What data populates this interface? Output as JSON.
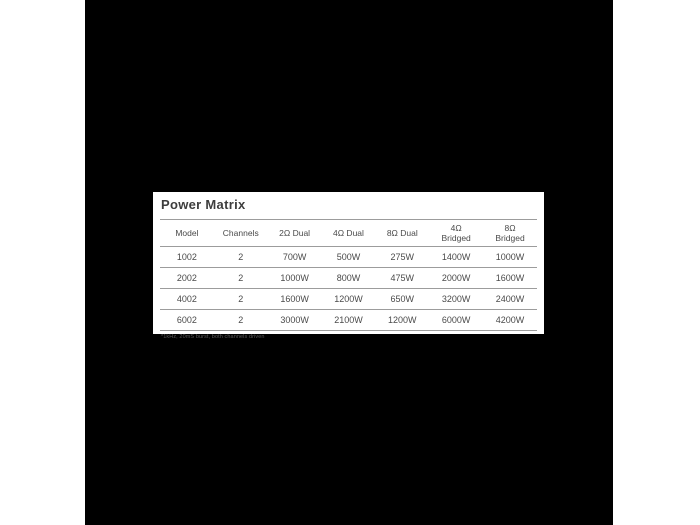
{
  "page": {
    "background_color": "#ffffff",
    "canvas_color": "#000000",
    "panel_color": "#ffffff",
    "line_color": "#9c9c9c",
    "text_color": "#4a4a4a"
  },
  "power_matrix": {
    "title": "Power Matrix",
    "columns": [
      "Model",
      "Channels",
      "2Ω Dual",
      "4Ω Dual",
      "8Ω Dual",
      "4Ω\nBridged",
      "8Ω\nBridged"
    ],
    "rows": [
      [
        "1002",
        "2",
        "700W",
        "500W",
        "275W",
        "1400W",
        "1000W"
      ],
      [
        "2002",
        "2",
        "1000W",
        "800W",
        "475W",
        "2000W",
        "1600W"
      ],
      [
        "4002",
        "2",
        "1600W",
        "1200W",
        "650W",
        "3200W",
        "2400W"
      ],
      [
        "6002",
        "2",
        "3000W",
        "2100W",
        "1200W",
        "6000W",
        "4200W"
      ]
    ],
    "footnote": "*1kHz, 20mS burst, both channels driven"
  },
  "chart_data": {
    "type": "table",
    "title": "Power Matrix",
    "categories": [
      "Model",
      "Channels",
      "2Ω Dual",
      "4Ω Dual",
      "8Ω Dual",
      "4Ω Bridged",
      "8Ω Bridged"
    ],
    "series": [
      {
        "name": "1002",
        "values": [
          2,
          "700W",
          "500W",
          "275W",
          "1400W",
          "1000W"
        ]
      },
      {
        "name": "2002",
        "values": [
          2,
          "1000W",
          "800W",
          "475W",
          "2000W",
          "1600W"
        ]
      },
      {
        "name": "4002",
        "values": [
          2,
          "1600W",
          "1200W",
          "650W",
          "3200W",
          "2400W"
        ]
      },
      {
        "name": "6002",
        "values": [
          2,
          "3000W",
          "2100W",
          "1200W",
          "6000W",
          "4200W"
        ]
      }
    ]
  }
}
